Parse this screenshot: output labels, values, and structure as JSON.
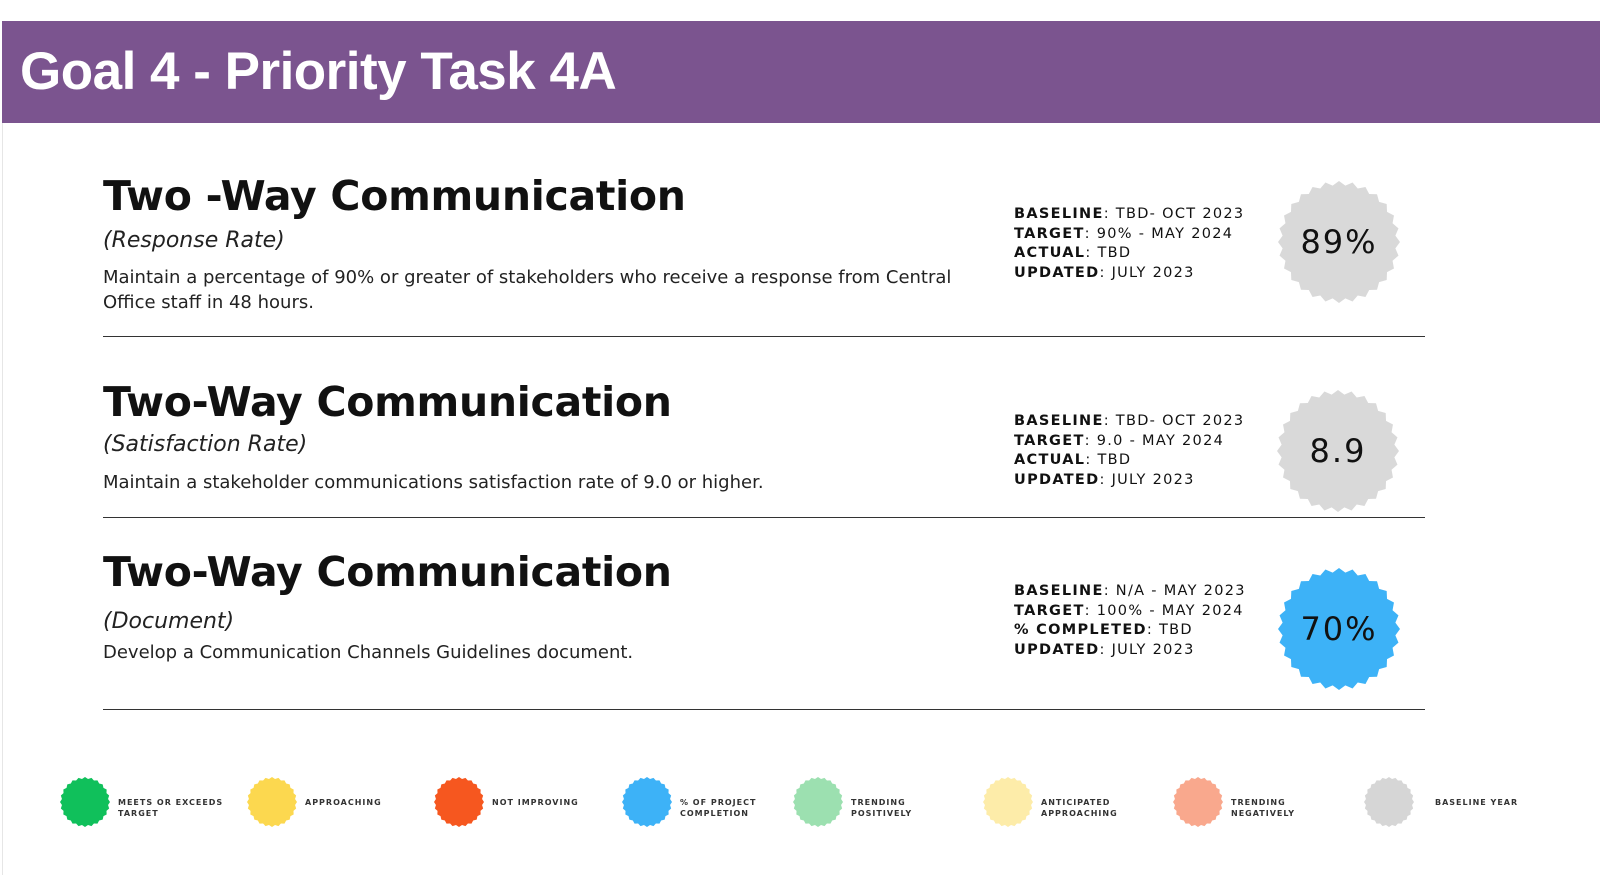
{
  "header": {
    "title": "Goal 4 - Priority Task 4A"
  },
  "sections": [
    {
      "title": "Two -Way Communication",
      "subtitle": "(Response Rate)",
      "description": "Maintain a percentage of 90% or greater of stakeholders who receive a response from Central Office staff in 48 hours.",
      "stats": [
        {
          "key": "BASELINE",
          "value": ": TBD- OCT 2023"
        },
        {
          "key": "TARGET",
          "value": ": 90% - MAY 2024"
        },
        {
          "key": "ACTUAL",
          "value": ": TBD"
        },
        {
          "key": "UPDATED",
          "value": ": JULY 2023"
        }
      ],
      "badge": {
        "value": "89%",
        "color": "#d9d9d9",
        "status": "baseline year"
      }
    },
    {
      "title": "Two-Way Communication",
      "subtitle": "(Satisfaction Rate)",
      "description": "Maintain a stakeholder communications satisfaction rate of 9.0 or higher.",
      "stats": [
        {
          "key": "BASELINE",
          "value": ": TBD- OCT 2023"
        },
        {
          "key": "TARGET",
          "value": ": 9.0 - MAY 2024"
        },
        {
          "key": "ACTUAL",
          "value": ": TBD"
        },
        {
          "key": "UPDATED",
          "value": ": JULY 2023"
        }
      ],
      "badge": {
        "value": "8.9",
        "color": "#d9d9d9",
        "status": "baseline year"
      }
    },
    {
      "title": "Two-Way Communication",
      "subtitle": "(Document)",
      "description": "Develop a Communication Channels Guidelines document.",
      "stats": [
        {
          "key": "BASELINE",
          "value": ": N/A - MAY 2023"
        },
        {
          "key": "TARGET",
          "value": ": 100% - MAY 2024"
        },
        {
          "key": "% COMPLETED",
          "value": ": TBD"
        },
        {
          "key": "UPDATED",
          "value": ": JULY 2023"
        }
      ],
      "badge": {
        "value": "70%",
        "color": "#3db2f7",
        "status": "% of project completion"
      }
    }
  ],
  "legend": [
    {
      "label_line1": "MEETS OR EXCEEDS",
      "label_line2": "TARGET",
      "color": "#10c05b"
    },
    {
      "label_line1": "APPROACHING",
      "label_line2": "",
      "color": "#fcd84f"
    },
    {
      "label_line1": "NOT IMPROVING",
      "label_line2": "",
      "color": "#f6571f"
    },
    {
      "label_line1": "% OF PROJECT",
      "label_line2": "COMPLETION",
      "color": "#3db2f7"
    },
    {
      "label_line1": "TRENDING",
      "label_line2": "POSITIVELY",
      "color": "#9ce0b0"
    },
    {
      "label_line1": "ANTICIPATED",
      "label_line2": "APPROACHING",
      "color": "#fdeca9"
    },
    {
      "label_line1": "TRENDING",
      "label_line2": "NEGATIVELY",
      "color": "#f9a88d"
    },
    {
      "label_line1": "BASELINE YEAR",
      "label_line2": "",
      "color": "#d6d6d6"
    }
  ]
}
